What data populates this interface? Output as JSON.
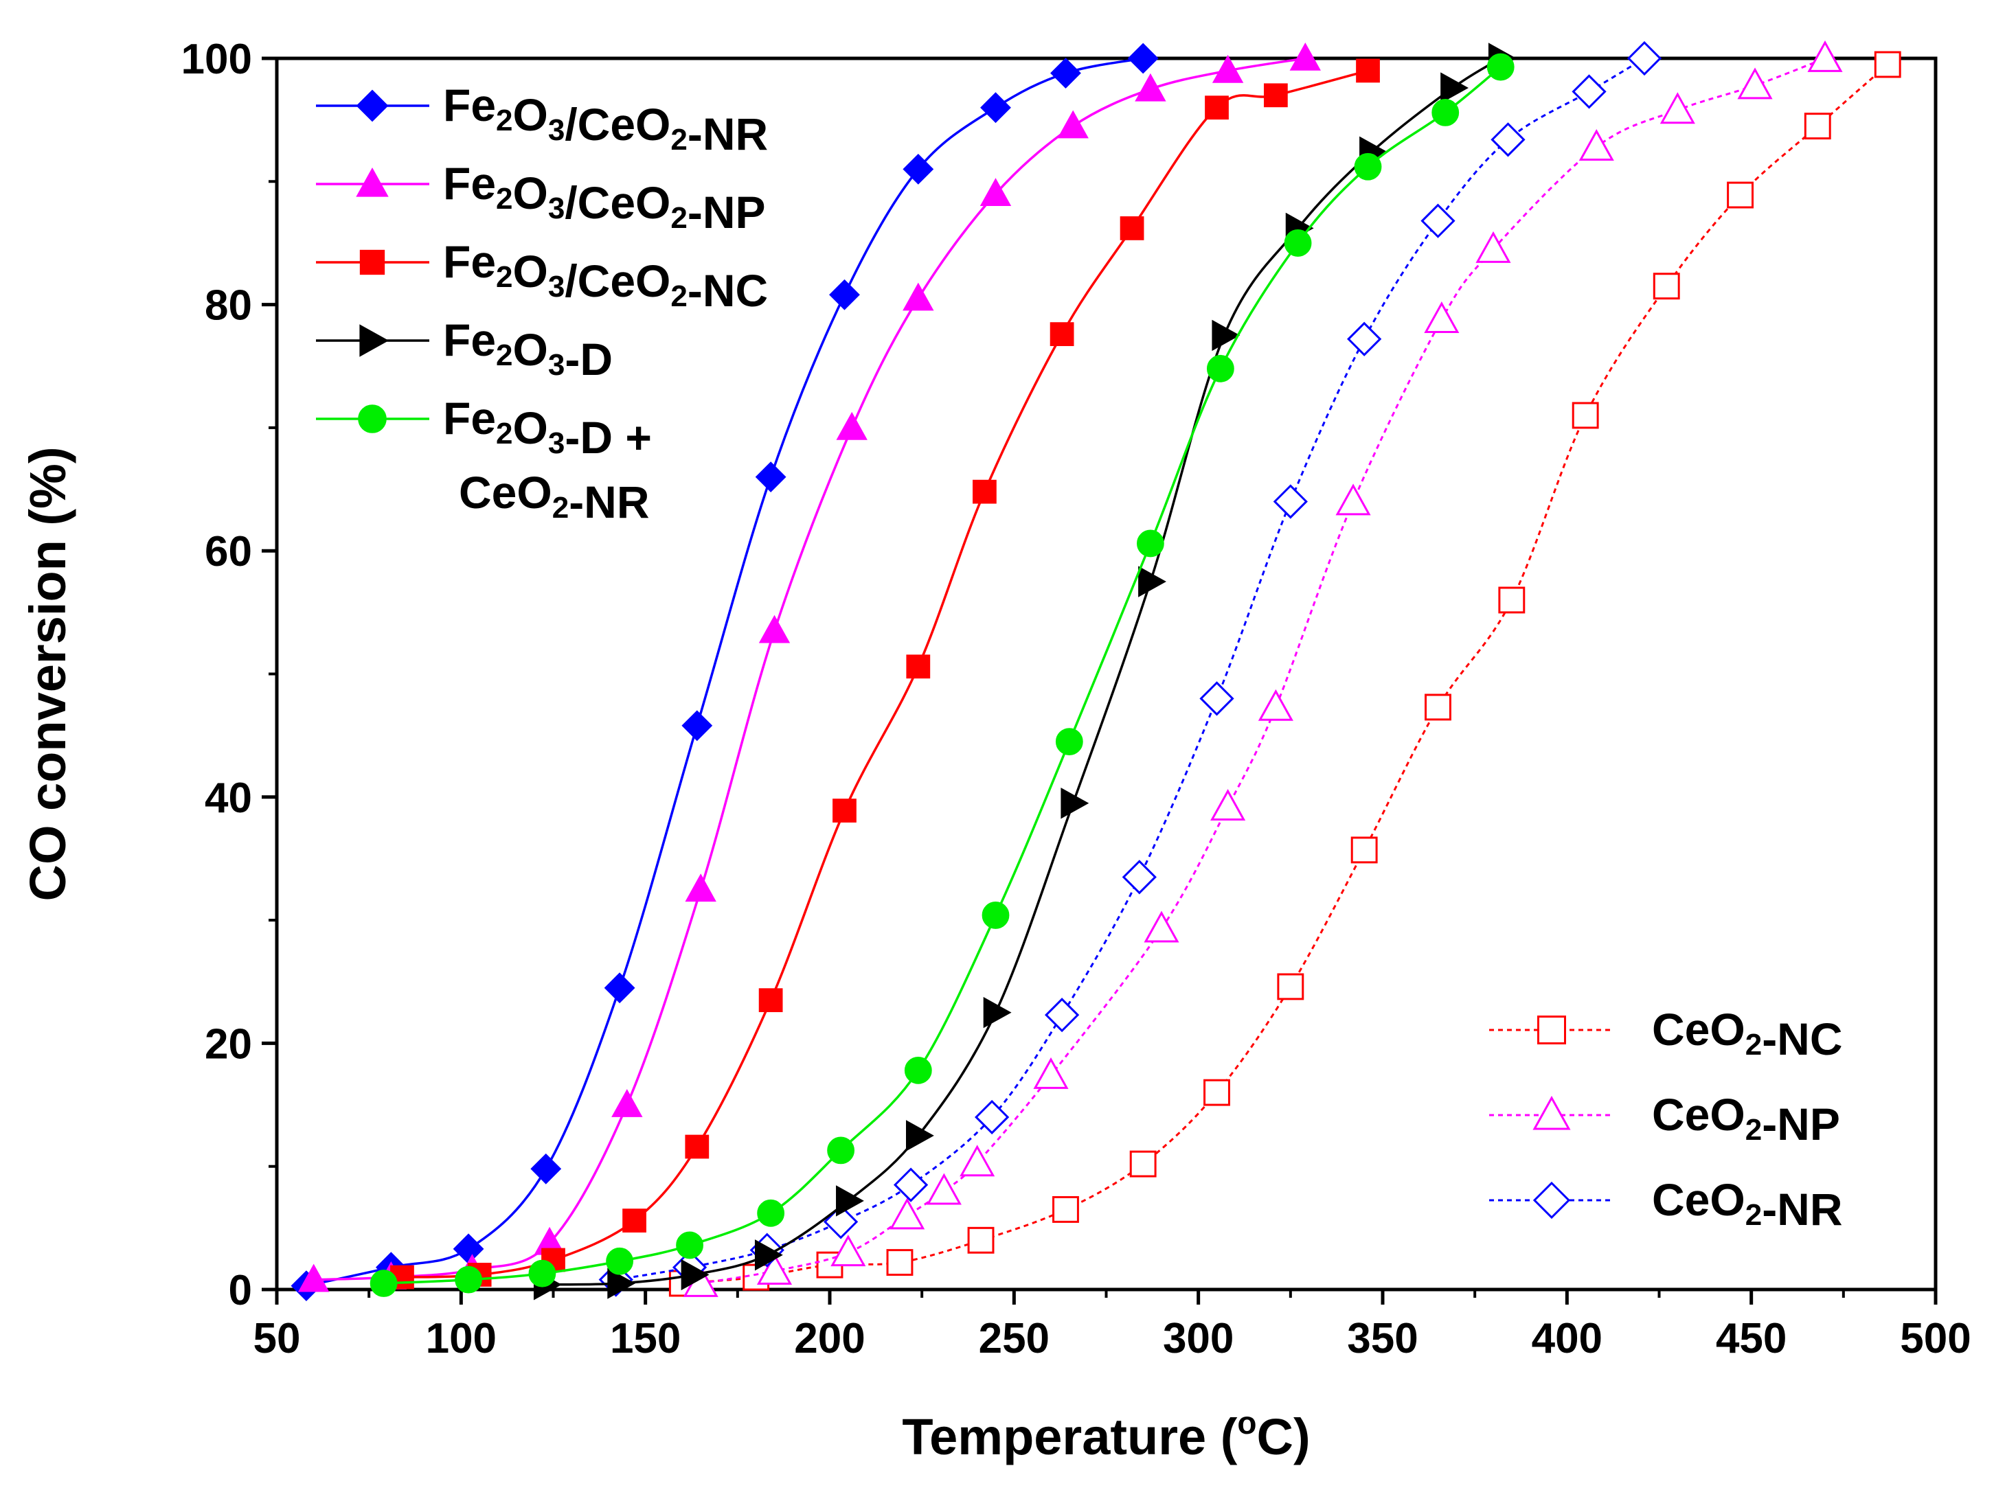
{
  "chart_data": {
    "type": "line",
    "title": "",
    "xlabel": "Temperature (°C)",
    "xlabel_parts": {
      "main": "Temperature (",
      "sup": "o",
      "tail": "C)"
    },
    "ylabel": "CO conversion (%)",
    "xlim": [
      50,
      500
    ],
    "ylim": [
      0,
      100
    ],
    "x_ticks": [
      50,
      100,
      150,
      200,
      250,
      300,
      350,
      400,
      450,
      500
    ],
    "y_ticks": [
      0,
      20,
      40,
      60,
      80,
      100
    ],
    "grid": false,
    "legend_placement": [
      "top-left",
      "bottom-right"
    ],
    "series": [
      {
        "name": "Fe2O3/CeO2-NR",
        "label_parts": [
          [
            "Fe",
            ""
          ],
          [
            "2",
            "sub"
          ],
          [
            "O",
            ""
          ],
          [
            "3",
            "sub"
          ],
          [
            "/CeO",
            ""
          ],
          [
            "2",
            "sub"
          ],
          [
            "-NR",
            ""
          ]
        ],
        "color": "#0000ff",
        "marker": "diamond",
        "filled": true,
        "dashed": false,
        "legend": 1,
        "x": [
          58,
          81,
          102,
          123,
          143,
          164,
          184,
          204,
          224,
          245,
          264,
          285
        ],
        "y": [
          0.3,
          1.8,
          3.3,
          9.8,
          24.5,
          45.8,
          66.0,
          80.8,
          91.0,
          96.0,
          98.8,
          100
        ]
      },
      {
        "name": "Fe2O3/CeO2-NP",
        "label_parts": [
          [
            "Fe",
            ""
          ],
          [
            "2",
            "sub"
          ],
          [
            "O",
            ""
          ],
          [
            "3",
            "sub"
          ],
          [
            "/CeO",
            ""
          ],
          [
            "2",
            "sub"
          ],
          [
            "-NP",
            ""
          ]
        ],
        "color": "#ff00ff",
        "marker": "triangle",
        "filled": true,
        "dashed": false,
        "legend": 1,
        "x": [
          60,
          81,
          103,
          124,
          145,
          165,
          185,
          206,
          224,
          245,
          266,
          287,
          308,
          329
        ],
        "y": [
          0.8,
          1.0,
          1.6,
          3.8,
          15.0,
          32.5,
          53.5,
          70.0,
          80.5,
          89.0,
          94.5,
          97.5,
          99.0,
          100
        ]
      },
      {
        "name": "Fe2O3/CeO2-NC",
        "label_parts": [
          [
            "Fe",
            ""
          ],
          [
            "2",
            "sub"
          ],
          [
            "O",
            ""
          ],
          [
            "3",
            "sub"
          ],
          [
            "/CeO",
            ""
          ],
          [
            "2",
            "sub"
          ],
          [
            "-NC",
            ""
          ]
        ],
        "color": "#ff0000",
        "marker": "square",
        "filled": true,
        "dashed": false,
        "legend": 1,
        "x": [
          84,
          105,
          125,
          147,
          164,
          184,
          204,
          224,
          242,
          263,
          282,
          305,
          321,
          346
        ],
        "y": [
          1.0,
          1.2,
          2.4,
          5.6,
          11.6,
          23.5,
          38.9,
          50.6,
          64.8,
          77.6,
          86.2,
          96.0,
          97.0,
          99.0
        ]
      },
      {
        "name": "Fe2O3-D",
        "label_parts": [
          [
            "Fe",
            ""
          ],
          [
            "2",
            "sub"
          ],
          [
            "O",
            ""
          ],
          [
            "3",
            "sub"
          ],
          [
            "-D",
            ""
          ]
        ],
        "color": "#000000",
        "marker": "triangle-right",
        "filled": true,
        "dashed": false,
        "legend": 1,
        "x": [
          123,
          143,
          163,
          183,
          205,
          224,
          245,
          266,
          287,
          307,
          327,
          347,
          369,
          382
        ],
        "y": [
          0.4,
          0.5,
          1.2,
          2.8,
          7.2,
          12.5,
          22.5,
          39.5,
          57.5,
          77.5,
          86.2,
          92.4,
          97.6,
          100
        ]
      },
      {
        "name": "Fe2O3-D + CeO2-NR",
        "label_parts": [
          [
            "Fe",
            ""
          ],
          [
            "2",
            "sub"
          ],
          [
            "O",
            ""
          ],
          [
            "3",
            "sub"
          ],
          [
            "-D +",
            ""
          ]
        ],
        "label_parts_line2": [
          [
            "CeO",
            ""
          ],
          [
            "2",
            "sub"
          ],
          [
            "-NR",
            ""
          ]
        ],
        "color": "#00ee00",
        "marker": "circle",
        "filled": true,
        "dashed": false,
        "legend": 1,
        "x": [
          79,
          102,
          122,
          143,
          162,
          184,
          203,
          224,
          245,
          265,
          287,
          306,
          327,
          346,
          367,
          382
        ],
        "y": [
          0.5,
          0.8,
          1.3,
          2.3,
          3.6,
          6.2,
          11.3,
          17.8,
          30.4,
          44.5,
          60.6,
          74.8,
          85.0,
          91.2,
          95.6,
          99.3
        ]
      },
      {
        "name": "CeO2-NC",
        "label_parts": [
          [
            "CeO",
            ""
          ],
          [
            "2",
            "sub"
          ],
          [
            "-NC",
            ""
          ]
        ],
        "color": "#ff0000",
        "marker": "square",
        "filled": false,
        "dashed": true,
        "legend": 2,
        "x": [
          160,
          180,
          200,
          219,
          241,
          264,
          285,
          305,
          325,
          345,
          365,
          385,
          405,
          427,
          447,
          468,
          487
        ],
        "y": [
          0.5,
          1.0,
          2.0,
          2.2,
          4.0,
          6.5,
          10.2,
          16.0,
          24.6,
          35.7,
          47.3,
          56.0,
          71.0,
          81.5,
          88.9,
          94.5,
          99.5
        ]
      },
      {
        "name": "CeO2-NP",
        "label_parts": [
          [
            "CeO",
            ""
          ],
          [
            "2",
            "sub"
          ],
          [
            "-NP",
            ""
          ]
        ],
        "color": "#ff00ff",
        "marker": "triangle",
        "filled": false,
        "dashed": true,
        "legend": 2,
        "x": [
          165,
          185,
          205,
          221,
          231,
          240,
          260,
          290,
          308,
          321,
          342,
          366,
          380,
          408,
          430,
          451,
          470
        ],
        "y": [
          0.5,
          1.5,
          3.0,
          6.0,
          8.0,
          10.3,
          17.4,
          29.3,
          39.2,
          47.3,
          64.0,
          78.8,
          84.5,
          92.8,
          95.8,
          97.8,
          100
        ]
      },
      {
        "name": "CeO2-NR",
        "label_parts": [
          [
            "CeO",
            ""
          ],
          [
            "2",
            "sub"
          ],
          [
            "-NR",
            ""
          ]
        ],
        "color": "#0000ff",
        "marker": "diamond",
        "filled": false,
        "dashed": true,
        "legend": 2,
        "x": [
          142,
          162,
          183,
          203,
          222,
          244,
          263,
          284,
          305,
          325,
          345,
          365,
          384,
          406,
          421
        ],
        "y": [
          0.8,
          1.8,
          3.2,
          5.5,
          8.5,
          14.0,
          22.3,
          33.5,
          48.0,
          64.0,
          77.2,
          86.8,
          93.4,
          97.3,
          100
        ]
      }
    ]
  }
}
